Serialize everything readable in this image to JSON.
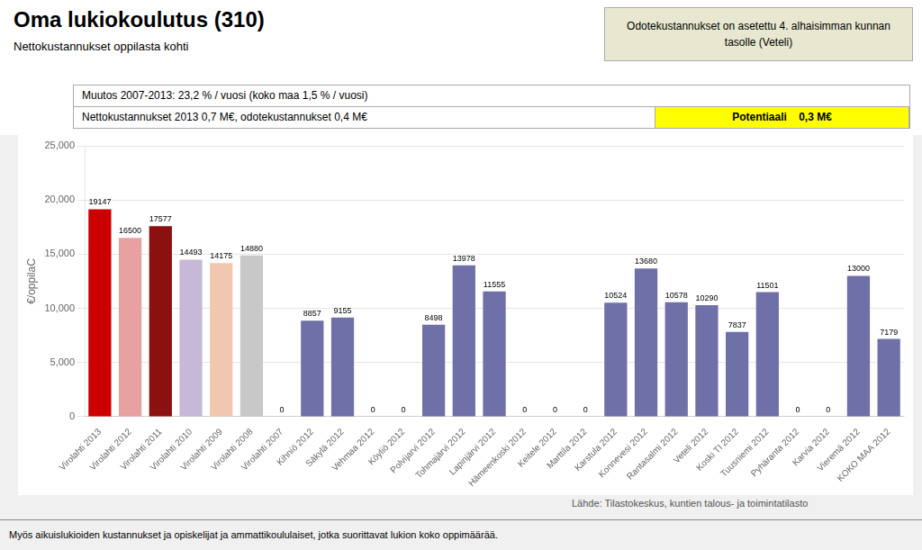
{
  "chart_data": {
    "type": "bar",
    "title": "Oma lukiokoulutus (310)",
    "subtitle": "Nettokustannukset oppilasta kohti",
    "ylabel": "€/oppilaC",
    "annotations": [
      "Odotekustannukset on asetettu 4. alhaisimman kunnan",
      "tasolle (Veteli)",
      "Muutos 2007-2013: 23,2 % / vuosi (koko maa 1,5 % / vuosi)",
      "Nettokustannukset 2013 0,7 M€, odotekustannukset 0,4 M€",
      "Potentiaali    0,3 M€",
      "Lähde: Tilastokeskus, kuntien talous- ja toimintatilasto",
      "Myös aikuislukioiden kustannukset ja opiskelijat ja ammattikoululaiset, jotka suorittavat lukion koko oppimäärää."
    ],
    "categories": [
      "Virolahti 2013",
      "Virolahti 2012",
      "Virolahti 2011",
      "Virolahti 2010",
      "Virolahti 2009",
      "Virolahti 2008",
      "Virolahti 2007",
      "Kihniö 2012",
      "Säkylä 2012",
      "Vehmaa 2012",
      "Köyliö 2012",
      "Polvijarvi 2012",
      "Tohmajärvi 2012",
      "Lapinjärvi 2012",
      "Hämeenkoski 2012",
      "Keitele 2012",
      "Marttila 2012",
      "Karstula 2012",
      "Konnevesi 2012",
      "Rantasalmi 2012",
      "Veteli 2012",
      "Koski TI 2012",
      "Tuusniemi 2012",
      "Pyhäranta 2012",
      "Karvia 2012",
      "Vieremä 2012",
      "KOKO MAA 2012"
    ],
    "values": [
      19147,
      16500,
      17577,
      14493,
      14175,
      14880,
      0,
      8857,
      9155,
      0,
      0,
      8498,
      13978,
      11555,
      0,
      0,
      0,
      10524,
      13680,
      10578,
      10290,
      7837,
      11501,
      0,
      0,
      13000,
      7179
    ],
    "colors": [
      "#cc0000",
      "#e8a0a0",
      "#8b1010",
      "#c8b8d8",
      "#f0c8b0",
      "#c8c8c8",
      "#7070a8",
      "#7070a8",
      "#7070a8",
      "#7070a8",
      "#7070a8",
      "#7070a8",
      "#7070a8",
      "#7070a8",
      "#7070a8",
      "#7070a8",
      "#7070a8",
      "#7070a8",
      "#7070a8",
      "#7070a8",
      "#7070a8",
      "#7070a8",
      "#7070a8",
      "#7070a8",
      "#7070a8",
      "#7070a8",
      "#7070a8"
    ],
    "ylim": [
      0,
      25000
    ],
    "yticks": [
      0,
      5000,
      10000,
      15000,
      20000,
      25000
    ],
    "grid": true,
    "data_labels": true
  }
}
